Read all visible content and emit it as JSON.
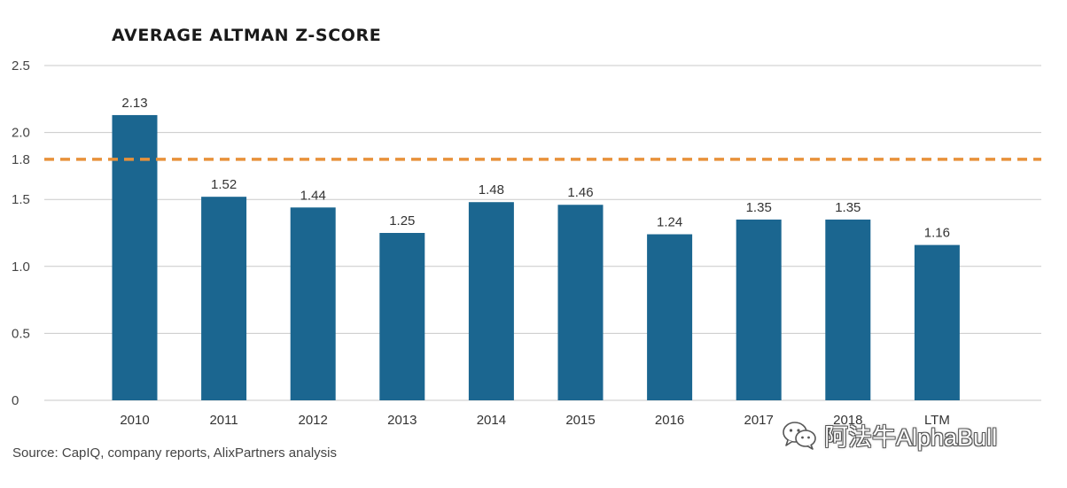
{
  "chart_data": {
    "type": "bar",
    "title": "AVERAGE ALTMAN Z-SCORE",
    "categories": [
      "2010",
      "2011",
      "2012",
      "2013",
      "2014",
      "2015",
      "2016",
      "2017",
      "2018",
      "LTM"
    ],
    "values": [
      2.13,
      1.52,
      1.44,
      1.25,
      1.48,
      1.46,
      1.24,
      1.35,
      1.35,
      1.16
    ],
    "data_labels": [
      "2.13",
      "1.52",
      "1.44",
      "1.25",
      "1.48",
      "1.46",
      "1.24",
      "1.35",
      "1.35",
      "1.16"
    ],
    "y_ticks": [
      {
        "value": 0,
        "label": "0"
      },
      {
        "value": 0.5,
        "label": "0.5"
      },
      {
        "value": 1.0,
        "label": "1.0"
      },
      {
        "value": 1.5,
        "label": "1.5"
      },
      {
        "value": 1.8,
        "label": "1.8"
      },
      {
        "value": 2.0,
        "label": "2.0"
      },
      {
        "value": 2.5,
        "label": "2.5"
      }
    ],
    "ylim": [
      0,
      2.5
    ],
    "grid": true,
    "reference_line": {
      "value": 1.8,
      "style": "dashed",
      "color": "#e8913a"
    },
    "bar_color": "#1b6690",
    "xlabel": "",
    "ylabel": ""
  },
  "source": "Source: CapIQ, company reports, AlixPartners analysis",
  "watermark": {
    "text": "阿法牛AlphaBull",
    "icon": "wechat-icon"
  }
}
